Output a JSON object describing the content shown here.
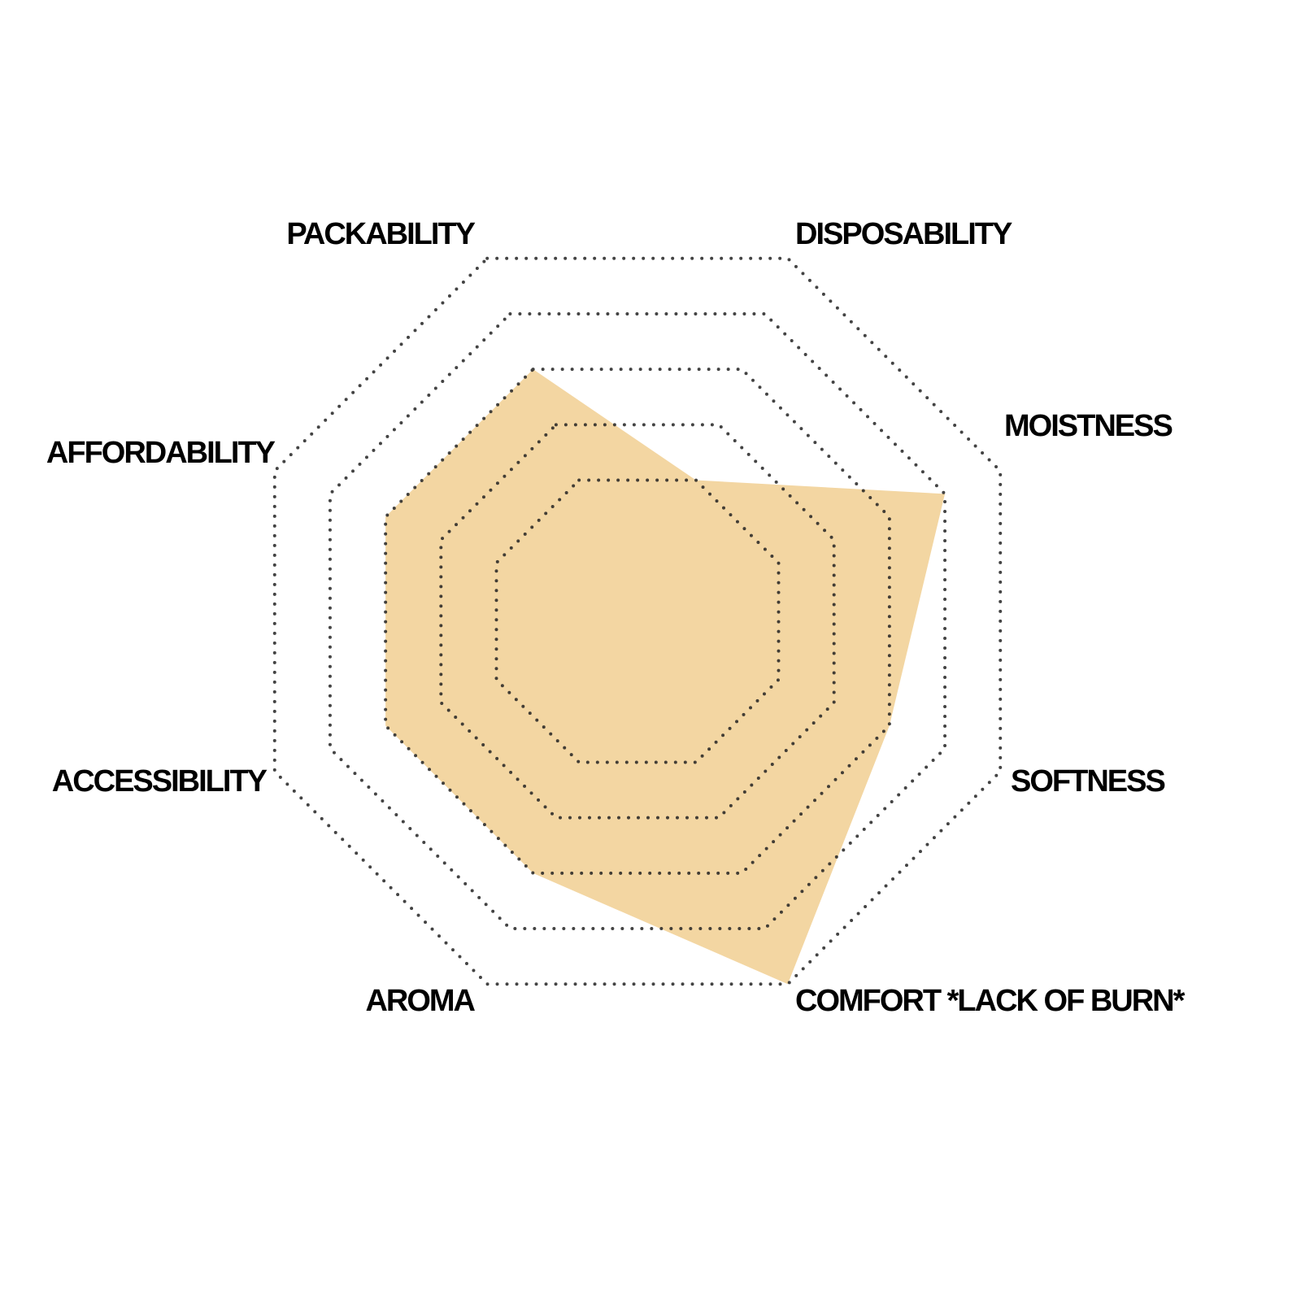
{
  "chart_data": {
    "type": "radar",
    "categories": [
      "PACKABILITY",
      "DISPOSABILITY",
      "MOISTNESS",
      "SOFTNESS",
      "COMFORT *LACK OF BURN*",
      "AROMA",
      "ACCESSIBILITY",
      "AFFORDABILITY"
    ],
    "values": [
      3,
      1,
      4,
      3,
      5,
      3,
      3,
      3
    ],
    "color": "#f3d6a2",
    "rlim": [
      0,
      5
    ],
    "rticks": [
      1,
      2,
      3,
      4,
      5
    ],
    "grid": true
  }
}
